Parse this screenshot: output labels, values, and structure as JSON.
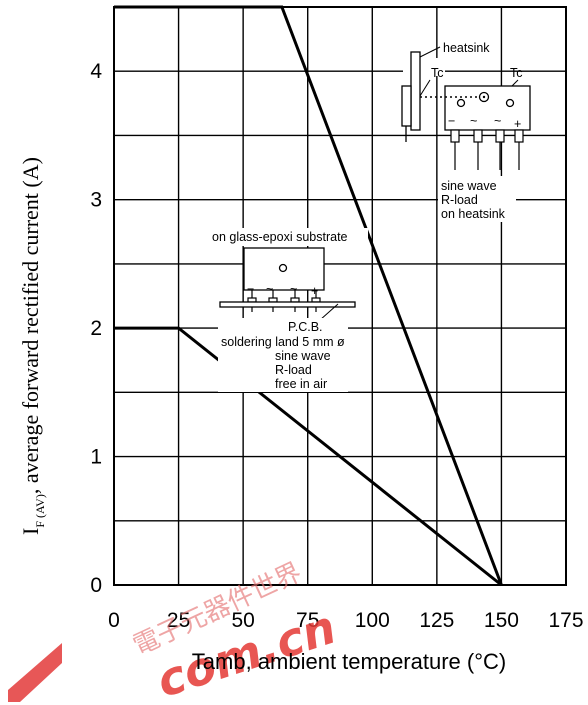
{
  "chart_data": {
    "type": "line",
    "xlabel": "Tamb, ambient temperature (°C)",
    "ylabel": {
      "symbol": "I",
      "subscript": "F (AV)",
      "text": ", average forward rectified current (A)"
    },
    "xlim": [
      0,
      175
    ],
    "ylim": [
      0,
      4.5
    ],
    "x_ticks": [
      0,
      25,
      50,
      75,
      100,
      125,
      150,
      175
    ],
    "y_ticks": [
      0,
      1,
      2,
      3,
      4
    ],
    "grid": true,
    "series": [
      {
        "x": [
          0,
          65,
          150
        ],
        "y": [
          4.5,
          4.5,
          0
        ]
      },
      {
        "x": [
          0,
          25,
          150
        ],
        "y": [
          2,
          2,
          0
        ]
      }
    ],
    "annotations": {
      "heatsink": {
        "labels": [
          "heatsink",
          "Tc",
          "Tc"
        ],
        "pins": [
          "−",
          "~",
          "~",
          "+"
        ],
        "conditions": [
          "sine wave",
          "R-load",
          "on heatsink"
        ]
      },
      "pcb": {
        "title": "on glass-epoxi substrate",
        "pins": [
          "−",
          "~",
          "~",
          "+"
        ],
        "conditions": [
          "P.C.B.",
          "soldering land 5 mm ø",
          "sine wave",
          "R-load",
          "free in air"
        ]
      }
    }
  },
  "watermark": {
    "text": "com.cn",
    "chinese": "電子元器件世界"
  }
}
